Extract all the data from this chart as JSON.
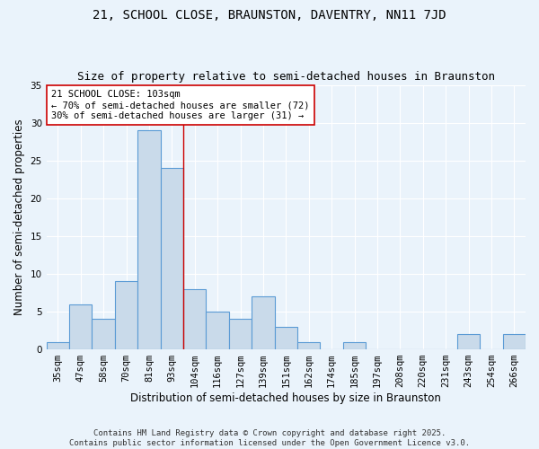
{
  "title": "21, SCHOOL CLOSE, BRAUNSTON, DAVENTRY, NN11 7JD",
  "subtitle": "Size of property relative to semi-detached houses in Braunston",
  "xlabel": "Distribution of semi-detached houses by size in Braunston",
  "ylabel": "Number of semi-detached properties",
  "categories": [
    "35sqm",
    "47sqm",
    "58sqm",
    "70sqm",
    "81sqm",
    "93sqm",
    "104sqm",
    "116sqm",
    "127sqm",
    "139sqm",
    "151sqm",
    "162sqm",
    "174sqm",
    "185sqm",
    "197sqm",
    "208sqm",
    "220sqm",
    "231sqm",
    "243sqm",
    "254sqm",
    "266sqm"
  ],
  "values": [
    1,
    6,
    4,
    9,
    29,
    24,
    8,
    5,
    4,
    7,
    3,
    1,
    0,
    1,
    0,
    0,
    0,
    0,
    2,
    0,
    2
  ],
  "bar_color": "#c9daea",
  "bar_edge_color": "#5b9bd5",
  "background_color": "#eaf3fb",
  "grid_color": "#ffffff",
  "vline_x_index": 6,
  "vline_color": "#cc0000",
  "annotation_line1": "21 SCHOOL CLOSE: 103sqm",
  "annotation_line2": "← 70% of semi-detached houses are smaller (72)",
  "annotation_line3": "30% of semi-detached houses are larger (31) →",
  "annotation_box_color": "#ffffff",
  "annotation_box_edge_color": "#cc0000",
  "ylim": [
    0,
    35
  ],
  "yticks": [
    0,
    5,
    10,
    15,
    20,
    25,
    30,
    35
  ],
  "footer": "Contains HM Land Registry data © Crown copyright and database right 2025.\nContains public sector information licensed under the Open Government Licence v3.0.",
  "title_fontsize": 10,
  "subtitle_fontsize": 9,
  "axis_label_fontsize": 8.5,
  "tick_fontsize": 7.5,
  "annotation_fontsize": 7.5,
  "footer_fontsize": 6.5
}
